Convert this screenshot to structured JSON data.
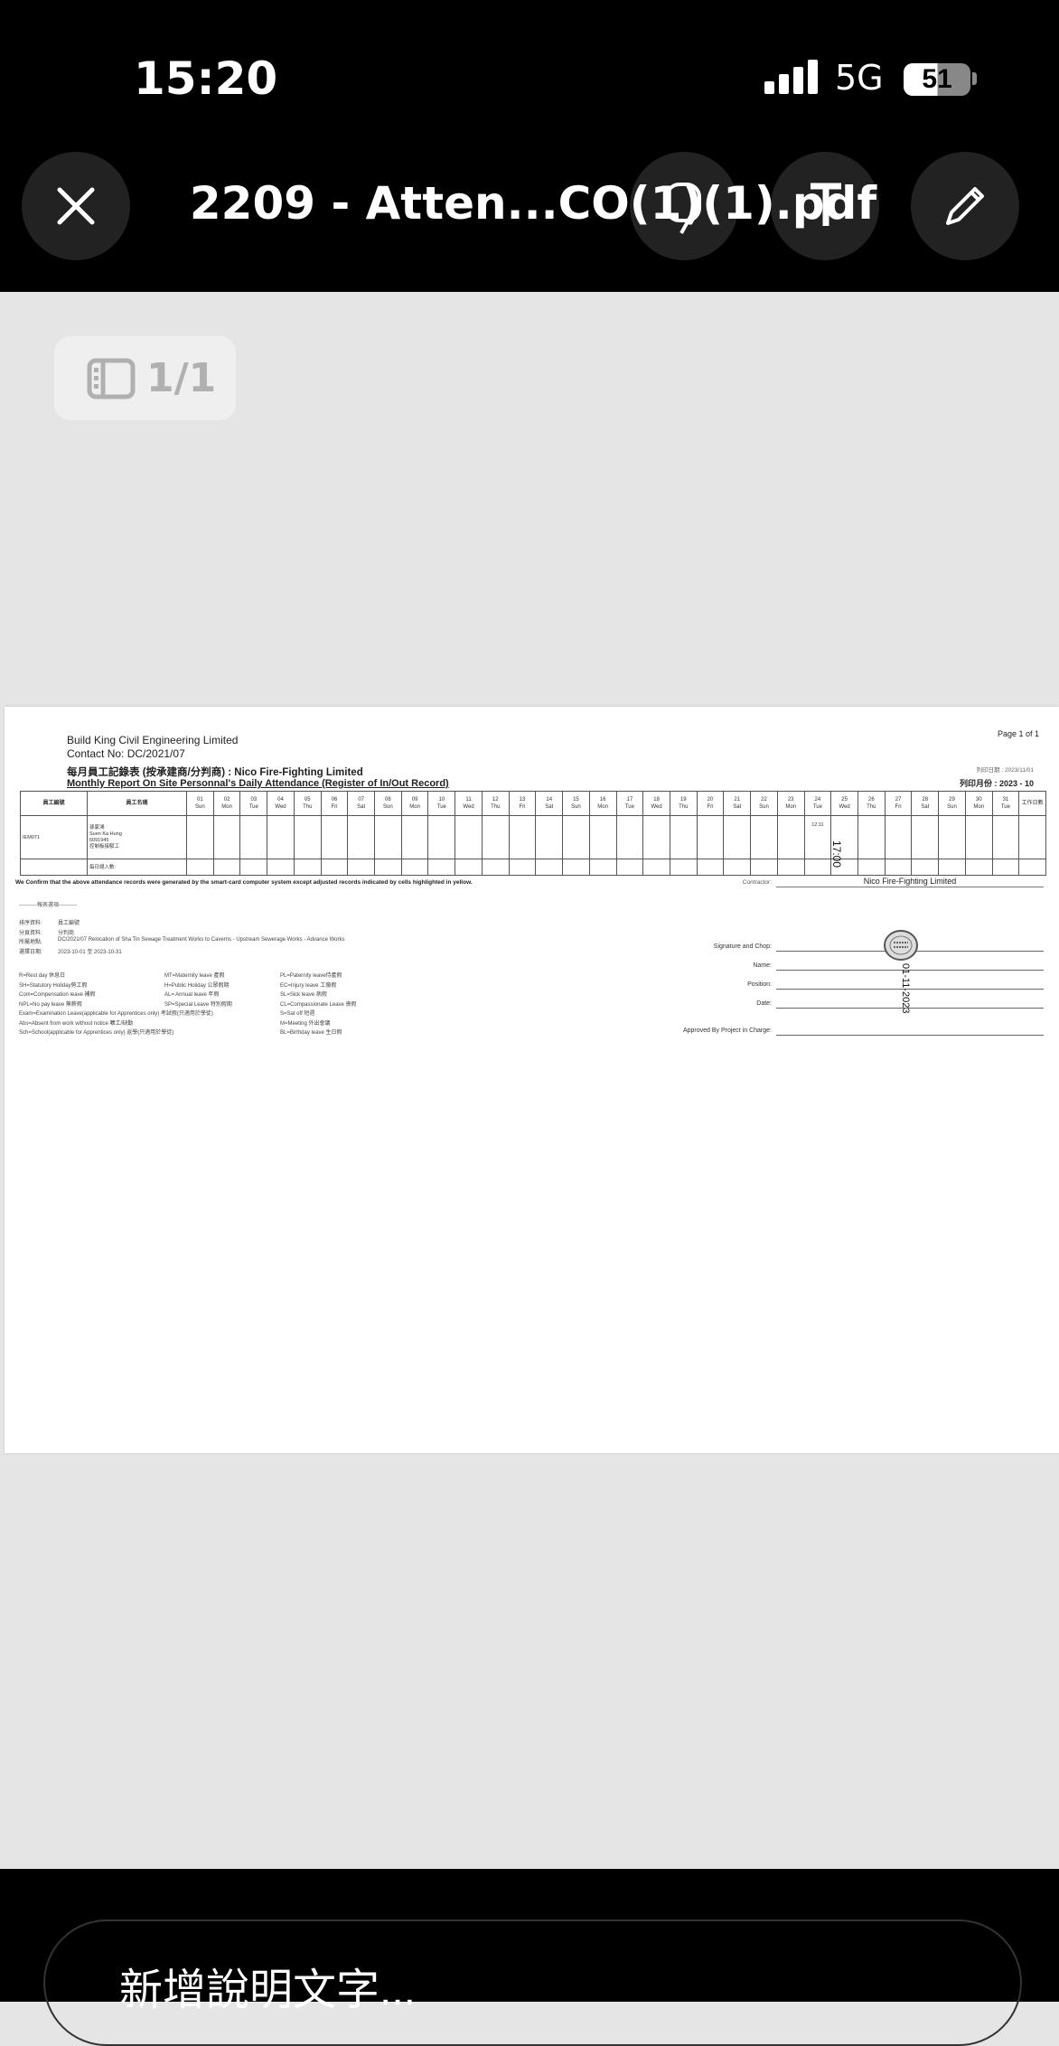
{
  "status_bar": {
    "time": "15:20",
    "network": "5G",
    "battery": "51",
    "battery_level": 51
  },
  "toolbar": {
    "title": "2209 - Atten...CO(1)(1).pdf",
    "buttons": [
      "close-icon",
      "markup-icon",
      "text-icon",
      "pencil-icon"
    ]
  },
  "page_indicator": {
    "label": "1/1"
  },
  "document": {
    "company": "Build King Civil Engineering Limited",
    "contact": "Contact No: DC/2021/07",
    "title_zh": "每月員工記錄表 (按承建商/分判商) : Nico Fire-Fighting Limited",
    "title_en": "Monthly Report On Site Personnal's Daily Attendance (Register of In/Out Record)",
    "page": "Page 1 of 1",
    "print_date": "列印日期 : 2023/11/01",
    "print_month": "列印月份 : 2023 - 10",
    "table": {
      "col_id": "員工編號",
      "col_name": "員工名稱",
      "col_workdays": "工作日數",
      "days": [
        [
          "01",
          "Sun"
        ],
        [
          "02",
          "Mon"
        ],
        [
          "03",
          "Tue"
        ],
        [
          "04",
          "Wed"
        ],
        [
          "05",
          "Thu"
        ],
        [
          "06",
          "Fri"
        ],
        [
          "07",
          "Sat"
        ],
        [
          "08",
          "Sun"
        ],
        [
          "09",
          "Mon"
        ],
        [
          "10",
          "Tue"
        ],
        [
          "11",
          "Wed"
        ],
        [
          "12",
          "Thu"
        ],
        [
          "13",
          "Fri"
        ],
        [
          "14",
          "Sat"
        ],
        [
          "15",
          "Sun"
        ],
        [
          "16",
          "Mon"
        ],
        [
          "17",
          "Tue"
        ],
        [
          "18",
          "Wed"
        ],
        [
          "19",
          "Thu"
        ],
        [
          "20",
          "Fri"
        ],
        [
          "21",
          "Sat"
        ],
        [
          "22",
          "Sun"
        ],
        [
          "23",
          "Mon"
        ],
        [
          "24",
          "Tue"
        ],
        [
          "25",
          "Wed"
        ],
        [
          "26",
          "Thu"
        ],
        [
          "27",
          "Fri"
        ],
        [
          "28",
          "Sat"
        ],
        [
          "29",
          "Sun"
        ],
        [
          "30",
          "Mon"
        ],
        [
          "31",
          "Tue"
        ]
      ],
      "employee": {
        "id": "IEM071",
        "name_lines": [
          "孫家鴻",
          "Suen Ka Hung",
          "6091945",
          "控制板接駁工"
        ],
        "records": {
          "24": "12:11"
        }
      },
      "total_label": "每日總入數:"
    },
    "handwritten_time": "17:00",
    "confirm": "We Confirm that the above attendance records were generated by the smart-card computer system except adjusted records indicated by cells highlighted in yellow.",
    "contractor_label": "Contractor:",
    "contractor_value": "Nico Fire-Fighting Limited",
    "options_heading": "----------報表選項----------",
    "options": [
      [
        "排序資料:",
        "員工編號"
      ],
      [
        "分頁資料:",
        "分判商"
      ],
      [
        "所屬地點:",
        "DC/2021/07  Relocation of Sha Tin Sewage Treatment Works to Caverns - Upstream Sewerage Works - Advance Works"
      ],
      [
        "選擇日期:",
        "2023-10-01 至 2023-10-31"
      ]
    ],
    "legend": [
      [
        "R=Rest day 休息日",
        "MT=Maternity leave 產假",
        "PL=Paternity leave侍產假"
      ],
      [
        "SH=Statutory Holiday勞工假",
        "H=Public Holiday 公眾假期",
        "EC=Injury leave 工傷假"
      ],
      [
        "Com=Compensation leave 補假",
        "AL= Annual leave 年假",
        "SL=Sick leave 病假"
      ],
      [
        "NPL=No pay leave 無薪假",
        "SP=Special Leave 特別假期",
        "CL=Compassionate Leave 喪假"
      ],
      [
        "Exam=Examination Leave(applicable for Apprentices only) 考試假(只適用於學徒)",
        "",
        "S=Sat off 短週"
      ],
      [
        "Abs=Absent from work without notice 曠工/缺勤",
        "",
        "M=Meeting 外出會議"
      ],
      [
        "Sch=School(applicable for Apprentices only) 返學(只適用於學徒)",
        "",
        "BL=Birthday leave 生日假"
      ]
    ],
    "signature": {
      "labels": [
        "Signature and Chop:",
        "Name:",
        "Position:",
        "Date:",
        "Approved By Project in Charge:"
      ],
      "handwritten_date": "01-11-2023",
      "stamp": "company chop"
    }
  },
  "caption": {
    "placeholder": "新增說明文字..."
  }
}
